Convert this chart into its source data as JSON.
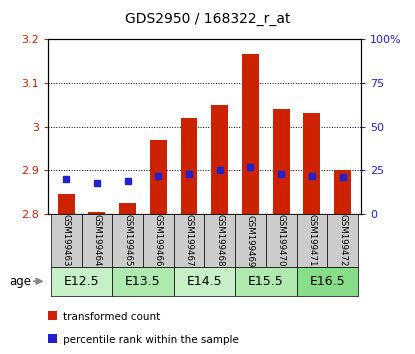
{
  "title": "GDS2950 / 168322_r_at",
  "samples": [
    "GSM199463",
    "GSM199464",
    "GSM199465",
    "GSM199466",
    "GSM199467",
    "GSM199468",
    "GSM199469",
    "GSM199470",
    "GSM199471",
    "GSM199472"
  ],
  "transformed_count": [
    2.845,
    2.805,
    2.825,
    2.97,
    3.02,
    3.05,
    3.165,
    3.04,
    3.03,
    2.9
  ],
  "percentile_rank": [
    20,
    18,
    19,
    22,
    23,
    25,
    27,
    23,
    22,
    21
  ],
  "age_groups": [
    {
      "label": "E12.5",
      "start": 0,
      "end": 2,
      "color": "#c8f0c8"
    },
    {
      "label": "E13.5",
      "start": 2,
      "end": 4,
      "color": "#aeeaae"
    },
    {
      "label": "E14.5",
      "start": 4,
      "end": 6,
      "color": "#c8f0c8"
    },
    {
      "label": "E15.5",
      "start": 6,
      "end": 8,
      "color": "#aeeaae"
    },
    {
      "label": "E16.5",
      "start": 8,
      "end": 10,
      "color": "#88dd88"
    }
  ],
  "ylim_left": [
    2.8,
    3.2
  ],
  "ylim_right": [
    0,
    100
  ],
  "yticks_left": [
    2.8,
    2.9,
    3.0,
    3.1,
    3.2
  ],
  "yticks_right": [
    0,
    25,
    50,
    75,
    100
  ],
  "bar_color": "#cc2200",
  "dot_color": "#2222cc",
  "bar_bottom": 2.8,
  "sample_bg": "#cccccc",
  "legend_items": [
    {
      "label": "transformed count",
      "color": "#cc2200"
    },
    {
      "label": "percentile rank within the sample",
      "color": "#2222cc"
    }
  ]
}
